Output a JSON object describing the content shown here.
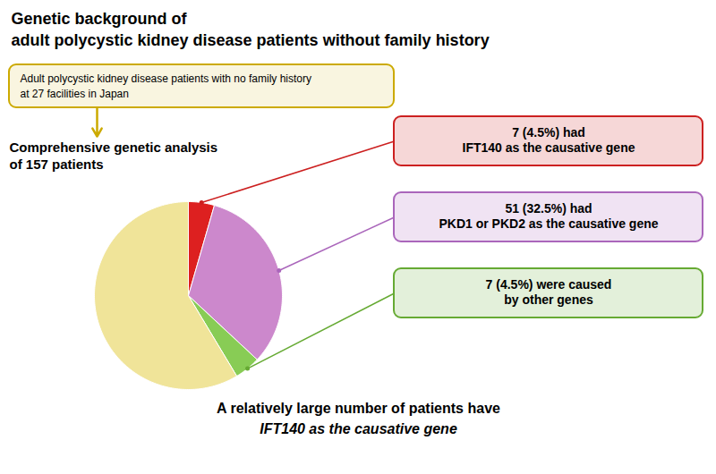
{
  "chart_data": {
    "type": "pie",
    "title": [
      "Genetic background of",
      "adult polycystic kidney disease patients without family history"
    ],
    "values": [
      7,
      51,
      7,
      92
    ],
    "colors": [
      "#dd2020",
      "#cc88cc",
      "#88cc55",
      "#f0e499"
    ],
    "annotations": [
      {
        "text": [
          "Adult polycystic kidney disease patients with no family history",
          "at 27 facilities in Japan"
        ],
        "color": "#ccaa00"
      },
      {
        "text": [
          "Comprehensive genetic analysis",
          "of 157 patients"
        ]
      },
      {
        "text": [
          "7 (4.5%) had",
          "IFT140 as the causative gene"
        ],
        "color": "#cc2020"
      },
      {
        "text": [
          "51 (32.5%) had",
          "PKD1 or PKD2 as the causative gene"
        ],
        "color": "#aa66bb"
      },
      {
        "text": [
          "7 (4.5%) were caused",
          "by other genes"
        ],
        "color": "#66aa33"
      },
      {
        "text": [
          "A relatively large number of patients have",
          "IFT140 as the causative gene"
        ]
      }
    ]
  }
}
